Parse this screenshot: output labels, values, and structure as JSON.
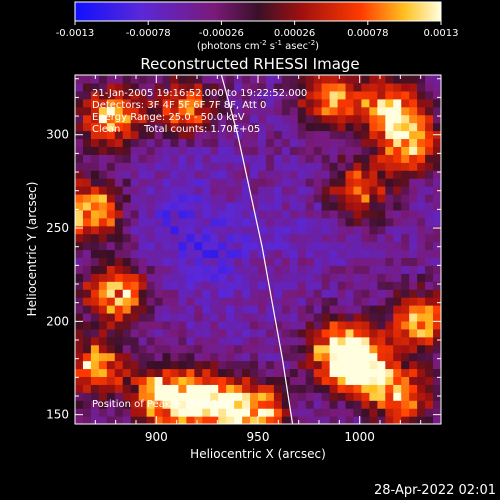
{
  "colorbar": {
    "tick_labels": [
      "-0.0013",
      "-0.00078",
      "-0.00026",
      "0.00026",
      "0.00078",
      "0.0013"
    ],
    "unit_main": "(photons cm",
    "unit_sup1": "-2",
    "unit_mid1": " s",
    "unit_sup2": "-1",
    "unit_mid2": " asec",
    "unit_sup3": "-2",
    "unit_end": ")",
    "range": [
      -0.0013,
      0.0013
    ]
  },
  "annotations": {
    "time_range": "21-Jan-2005 19:16:52.000 to 19:22:52.000",
    "detectors": "Detectors: 3F 4F 5F 6F 7F 8F, Att 0",
    "energy": "Energy Range: 25.0 - 50.0 keV",
    "clean": "Clean",
    "total_counts": "Total counts: 1.70E+05",
    "peak": "Position of Peak = [948,152]"
  },
  "footer": {
    "timestamp": "28-Apr-2022 02:01"
  },
  "chart_data": {
    "type": "heatmap",
    "title": "Reconstructed RHESSI Image",
    "xlabel": "Heliocentric X (arcsec)",
    "ylabel": "Heliocentric Y (arcsec)",
    "xlim": [
      860,
      1040
    ],
    "ylim": [
      145,
      332
    ],
    "x_ticks": [
      900,
      950,
      1000
    ],
    "y_ticks": [
      150,
      200,
      250,
      300
    ],
    "x_tick_labels": [
      "900",
      "950",
      "1000"
    ],
    "y_tick_labels": [
      "150",
      "200",
      "250",
      "300"
    ],
    "colormap": "rainbow-inferno",
    "limb_arc": [
      [
        932,
        332
      ],
      [
        940,
        300
      ],
      [
        946,
        270
      ],
      [
        952,
        240
      ],
      [
        957,
        210
      ],
      [
        962,
        180
      ],
      [
        966,
        152
      ],
      [
        967,
        145
      ]
    ],
    "bright_regions": [
      {
        "x": 868,
        "y": 260,
        "value": 0.0013
      },
      {
        "x": 878,
        "y": 310,
        "value": 0.0012
      },
      {
        "x": 880,
        "y": 215,
        "value": 0.0011
      },
      {
        "x": 870,
        "y": 175,
        "value": 0.0011
      },
      {
        "x": 905,
        "y": 160,
        "value": 0.0013
      },
      {
        "x": 925,
        "y": 158,
        "value": 0.0012
      },
      {
        "x": 948,
        "y": 152,
        "value": 0.0013
      },
      {
        "x": 990,
        "y": 185,
        "value": 0.0013
      },
      {
        "x": 1000,
        "y": 175,
        "value": 0.0012
      },
      {
        "x": 1015,
        "y": 315,
        "value": 0.0011
      },
      {
        "x": 1025,
        "y": 295,
        "value": 0.0011
      },
      {
        "x": 1030,
        "y": 200,
        "value": 0.0011
      },
      {
        "x": 1020,
        "y": 160,
        "value": 0.001
      },
      {
        "x": 915,
        "y": 315,
        "value": 0.0009
      },
      {
        "x": 985,
        "y": 320,
        "value": 0.0009
      },
      {
        "x": 1000,
        "y": 270,
        "value": 0.0008
      }
    ],
    "dark_regions": [
      {
        "x": 905,
        "y": 255,
        "value": -0.0007
      },
      {
        "x": 925,
        "y": 235,
        "value": -0.0008
      },
      {
        "x": 915,
        "y": 290,
        "value": -0.0006
      },
      {
        "x": 970,
        "y": 250,
        "value": -0.0006
      },
      {
        "x": 945,
        "y": 200,
        "value": -0.0005
      }
    ]
  }
}
